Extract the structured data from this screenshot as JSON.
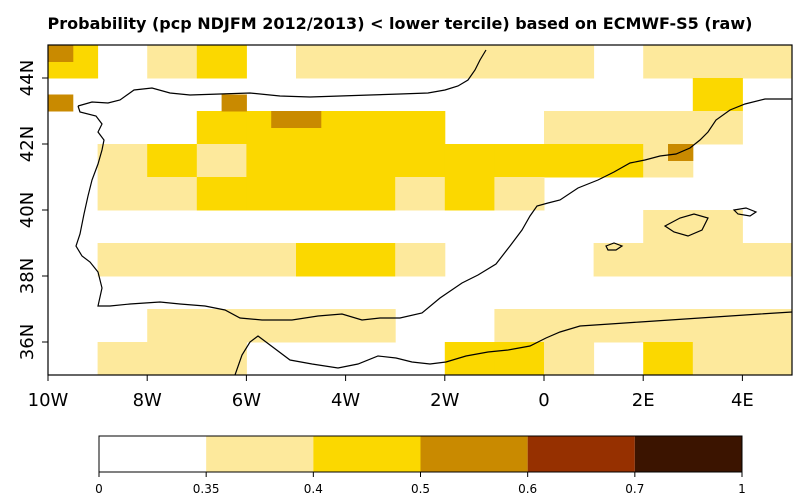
{
  "title": "Probability (pcp NDJFM 2012/2013) < lower tercile) based on ECMWF-S5 (raw)",
  "chart_data": {
    "type": "heatmap",
    "title": "Probability (pcp NDJFM 2012/2013) < lower tercile) based on ECMWF-S5 (raw)",
    "xlim": [
      -10,
      5
    ],
    "ylim": [
      35,
      45
    ],
    "x_ticks": [
      "10W",
      "8W",
      "6W",
      "4W",
      "2W",
      "0",
      "2E",
      "4E"
    ],
    "x_tick_values": [
      -10,
      -8,
      -6,
      -4,
      -2,
      0,
      2,
      4
    ],
    "y_ticks": [
      "36N",
      "38N",
      "40N",
      "42N",
      "44N"
    ],
    "y_tick_values": [
      36,
      38,
      40,
      42,
      44
    ],
    "legend": {
      "position": "bottom",
      "breaks": [
        "0",
        "0.35",
        "0.4",
        "0.5",
        "0.6",
        "0.7",
        "1"
      ],
      "break_values": [
        0,
        0.35,
        0.4,
        0.5,
        0.6,
        0.7,
        1
      ],
      "colors": [
        "#ffffff",
        "#fde99c",
        "#fbd800",
        "#c98a00",
        "#963000",
        "#3b1400"
      ]
    },
    "grid_step_deg": 1,
    "cells": [
      {
        "lon": -10,
        "lat": 44,
        "value": 0.4
      },
      {
        "lon": -8,
        "lat": 44,
        "value": 0.35
      },
      {
        "lon": -7,
        "lat": 44,
        "value": 0.4
      },
      {
        "lon": -5,
        "lat": 44,
        "value": 0.35
      },
      {
        "lon": -4,
        "lat": 44,
        "value": 0.35
      },
      {
        "lon": -3,
        "lat": 44,
        "value": 0.35
      },
      {
        "lon": -2,
        "lat": 44,
        "value": 0.35
      },
      {
        "lon": -1,
        "lat": 44,
        "value": 0.35
      },
      {
        "lon": 0,
        "lat": 44,
        "value": 0.35
      },
      {
        "lon": 2,
        "lat": 44,
        "value": 0.35
      },
      {
        "lon": 3,
        "lat": 44,
        "value": 0.35
      },
      {
        "lon": 4,
        "lat": 44,
        "value": 0.35
      },
      {
        "lon": 3,
        "lat": 43,
        "value": 0.4
      },
      {
        "lon": -7,
        "lat": 42,
        "value": 0.4
      },
      {
        "lon": -6,
        "lat": 42,
        "value": 0.4
      },
      {
        "lon": -5,
        "lat": 42,
        "value": 0.4
      },
      {
        "lon": -4,
        "lat": 42,
        "value": 0.4
      },
      {
        "lon": -3,
        "lat": 42,
        "value": 0.4
      },
      {
        "lon": 0,
        "lat": 42,
        "value": 0.35
      },
      {
        "lon": 1,
        "lat": 42,
        "value": 0.35
      },
      {
        "lon": 2,
        "lat": 42,
        "value": 0.35
      },
      {
        "lon": 3,
        "lat": 42,
        "value": 0.35
      },
      {
        "lon": -9,
        "lat": 41,
        "value": 0.35
      },
      {
        "lon": -8,
        "lat": 41,
        "value": 0.4
      },
      {
        "lon": -7,
        "lat": 41,
        "value": 0.35
      },
      {
        "lon": -6,
        "lat": 41,
        "value": 0.4
      },
      {
        "lon": -5,
        "lat": 41,
        "value": 0.4
      },
      {
        "lon": -4,
        "lat": 41,
        "value": 0.4
      },
      {
        "lon": -3,
        "lat": 41,
        "value": 0.4
      },
      {
        "lon": -2,
        "lat": 41,
        "value": 0.4
      },
      {
        "lon": -1,
        "lat": 41,
        "value": 0.4
      },
      {
        "lon": 0,
        "lat": 41,
        "value": 0.4
      },
      {
        "lon": 1,
        "lat": 41,
        "value": 0.4
      },
      {
        "lon": 2,
        "lat": 41,
        "value": 0.35
      },
      {
        "lon": -9,
        "lat": 40,
        "value": 0.35
      },
      {
        "lon": -8,
        "lat": 40,
        "value": 0.35
      },
      {
        "lon": -7,
        "lat": 40,
        "value": 0.4
      },
      {
        "lon": -6,
        "lat": 40,
        "value": 0.4
      },
      {
        "lon": -5,
        "lat": 40,
        "value": 0.4
      },
      {
        "lon": -4,
        "lat": 40,
        "value": 0.4
      },
      {
        "lon": -3,
        "lat": 40,
        "value": 0.35
      },
      {
        "lon": -2,
        "lat": 40,
        "value": 0.4
      },
      {
        "lon": -1,
        "lat": 40,
        "value": 0.35
      },
      {
        "lon": 2,
        "lat": 39,
        "value": 0.35
      },
      {
        "lon": 3,
        "lat": 39,
        "value": 0.35
      },
      {
        "lon": -9,
        "lat": 38,
        "value": 0.35
      },
      {
        "lon": -8,
        "lat": 38,
        "value": 0.35
      },
      {
        "lon": -7,
        "lat": 38,
        "value": 0.35
      },
      {
        "lon": -6,
        "lat": 38,
        "value": 0.35
      },
      {
        "lon": -5,
        "lat": 38,
        "value": 0.4
      },
      {
        "lon": -4,
        "lat": 38,
        "value": 0.4
      },
      {
        "lon": -3,
        "lat": 38,
        "value": 0.35
      },
      {
        "lon": 1,
        "lat": 38,
        "value": 0.35
      },
      {
        "lon": 2,
        "lat": 38,
        "value": 0.35
      },
      {
        "lon": 3,
        "lat": 38,
        "value": 0.35
      },
      {
        "lon": 4,
        "lat": 38,
        "value": 0.35
      },
      {
        "lon": -8,
        "lat": 36,
        "value": 0.35
      },
      {
        "lon": -7,
        "lat": 36,
        "value": 0.35
      },
      {
        "lon": -6,
        "lat": 36,
        "value": 0.35
      },
      {
        "lon": -5,
        "lat": 36,
        "value": 0.35
      },
      {
        "lon": -4,
        "lat": 36,
        "value": 0.35
      },
      {
        "lon": -1,
        "lat": 36,
        "value": 0.35
      },
      {
        "lon": 0,
        "lat": 36,
        "value": 0.35
      },
      {
        "lon": 1,
        "lat": 36,
        "value": 0.35
      },
      {
        "lon": 2,
        "lat": 36,
        "value": 0.35
      },
      {
        "lon": 3,
        "lat": 36,
        "value": 0.35
      },
      {
        "lon": 4,
        "lat": 36,
        "value": 0.35
      },
      {
        "lon": -9,
        "lat": 35,
        "value": 0.35
      },
      {
        "lon": -8,
        "lat": 35,
        "value": 0.35
      },
      {
        "lon": -7,
        "lat": 35,
        "value": 0.35
      },
      {
        "lon": -2,
        "lat": 35,
        "value": 0.4
      },
      {
        "lon": -1,
        "lat": 35,
        "value": 0.4
      },
      {
        "lon": 0,
        "lat": 35,
        "value": 0.35
      },
      {
        "lon": 2,
        "lat": 35,
        "value": 0.4
      },
      {
        "lon": 3,
        "lat": 35,
        "value": 0.35
      },
      {
        "lon": 4,
        "lat": 35,
        "value": 0.35
      }
    ],
    "half_cells": [
      {
        "lon": -10,
        "lat": 44.5,
        "value": 0.5
      },
      {
        "lon": -10,
        "lat": 43.0,
        "value": 0.5
      },
      {
        "lon": -6.5,
        "lat": 43.0,
        "value": 0.5
      },
      {
        "lon": -5.5,
        "lat": 42.5,
        "value": 0.5
      },
      {
        "lon": -5.0,
        "lat": 42.5,
        "value": 0.5
      },
      {
        "lon": 2.5,
        "lat": 41.5,
        "value": 0.5
      }
    ]
  }
}
